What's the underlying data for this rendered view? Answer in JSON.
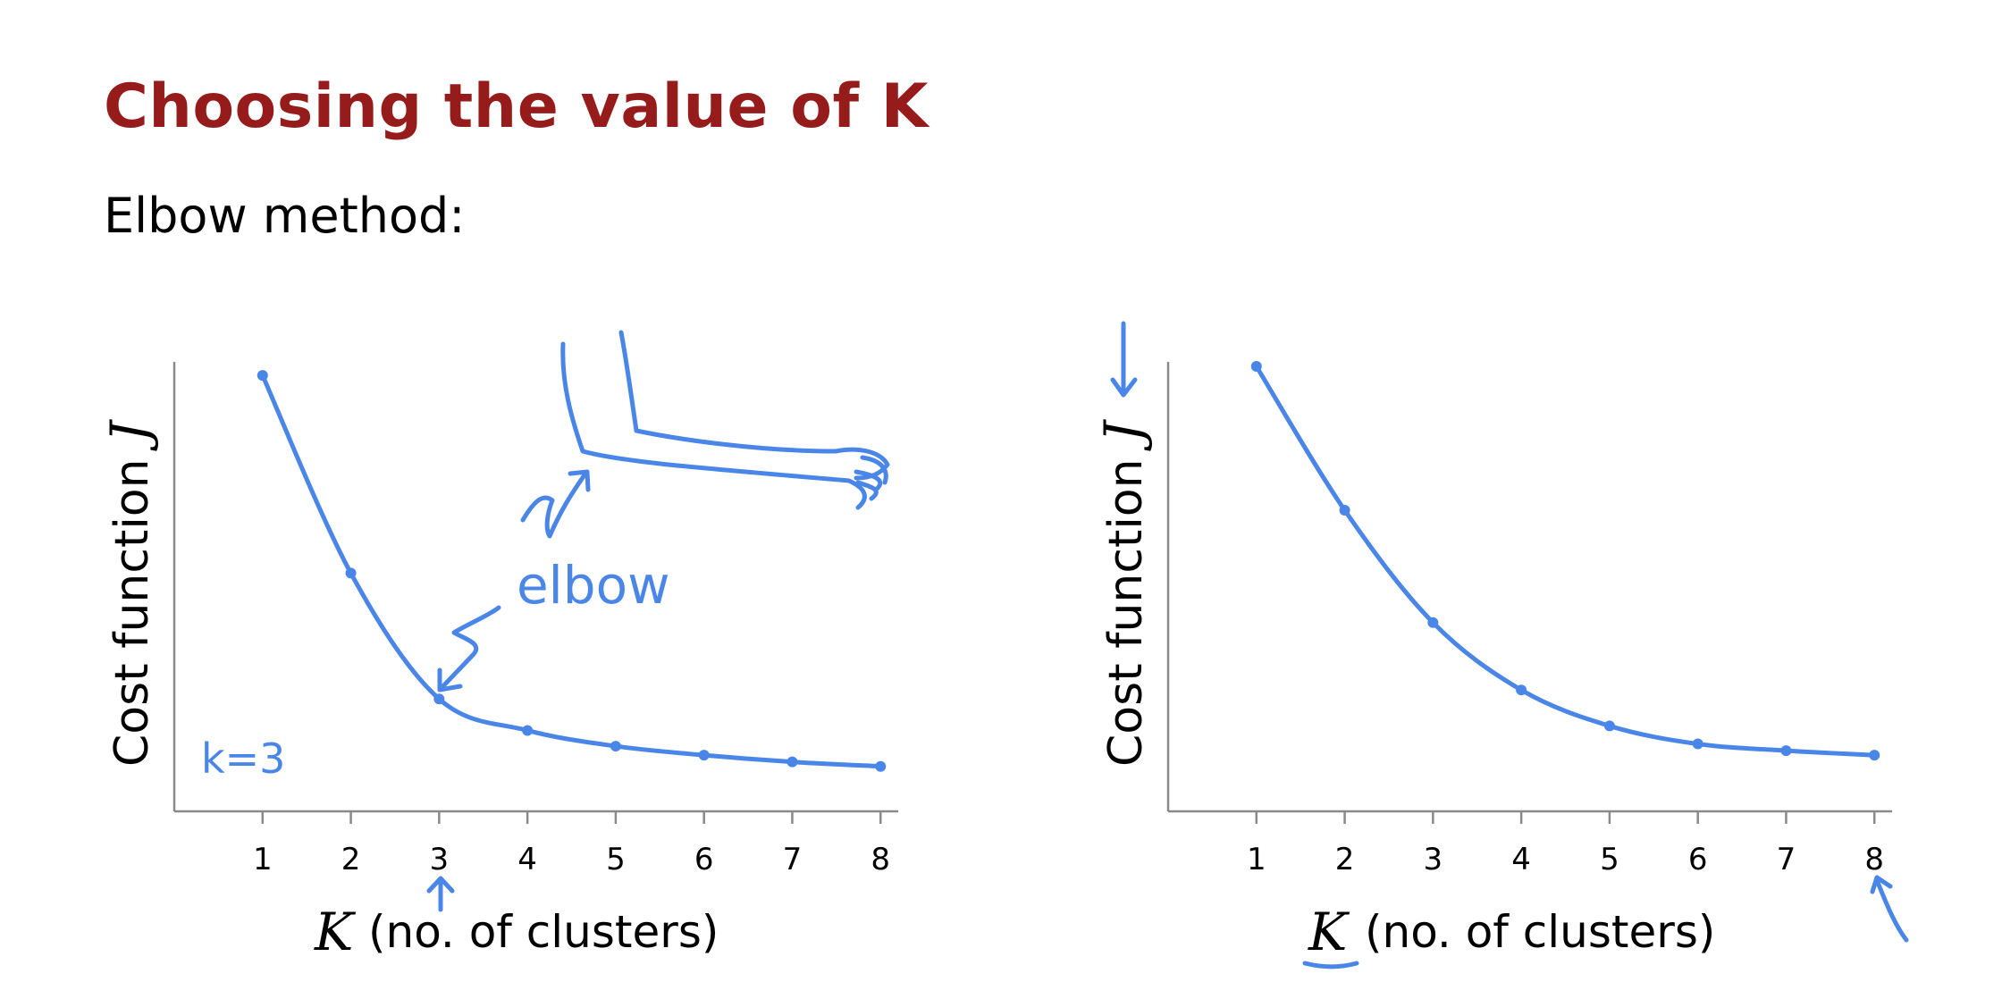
{
  "slide": {
    "title": "Choosing the value of K",
    "subtitle": "Elbow method:"
  },
  "annotations": {
    "elbow_label": "elbow",
    "k_choice": "k=3"
  },
  "colors": {
    "title": "#961b1b",
    "ink": "#4a86e8",
    "axis": "#8a8a8a"
  },
  "chart_data": [
    {
      "type": "line",
      "x": [
        1,
        2,
        3,
        4,
        5,
        6,
        7,
        8
      ],
      "y": [
        0.97,
        0.53,
        0.25,
        0.18,
        0.145,
        0.125,
        0.11,
        0.1
      ],
      "tick_labels": [
        "1",
        "2",
        "3",
        "4",
        "5",
        "6",
        "7",
        "8"
      ],
      "xlabel_var": "K",
      "xlabel_text": "(no. of clusters)",
      "ylabel_text": "Cost function",
      "ylabel_var": "J",
      "xlim": [
        0,
        8.2
      ],
      "ylim": [
        0,
        1
      ],
      "grid": false,
      "markers": true
    },
    {
      "type": "line",
      "x": [
        1,
        2,
        3,
        4,
        5,
        6,
        7,
        8
      ],
      "y": [
        0.99,
        0.67,
        0.42,
        0.27,
        0.19,
        0.15,
        0.135,
        0.125
      ],
      "tick_labels": [
        "1",
        "2",
        "3",
        "4",
        "5",
        "6",
        "7",
        "8"
      ],
      "xlabel_var": "K",
      "xlabel_text": "(no. of clusters)",
      "ylabel_text": "Cost function",
      "ylabel_var": "J",
      "xlim": [
        0,
        8.2
      ],
      "ylim": [
        0,
        1
      ],
      "grid": false,
      "markers": true
    }
  ]
}
